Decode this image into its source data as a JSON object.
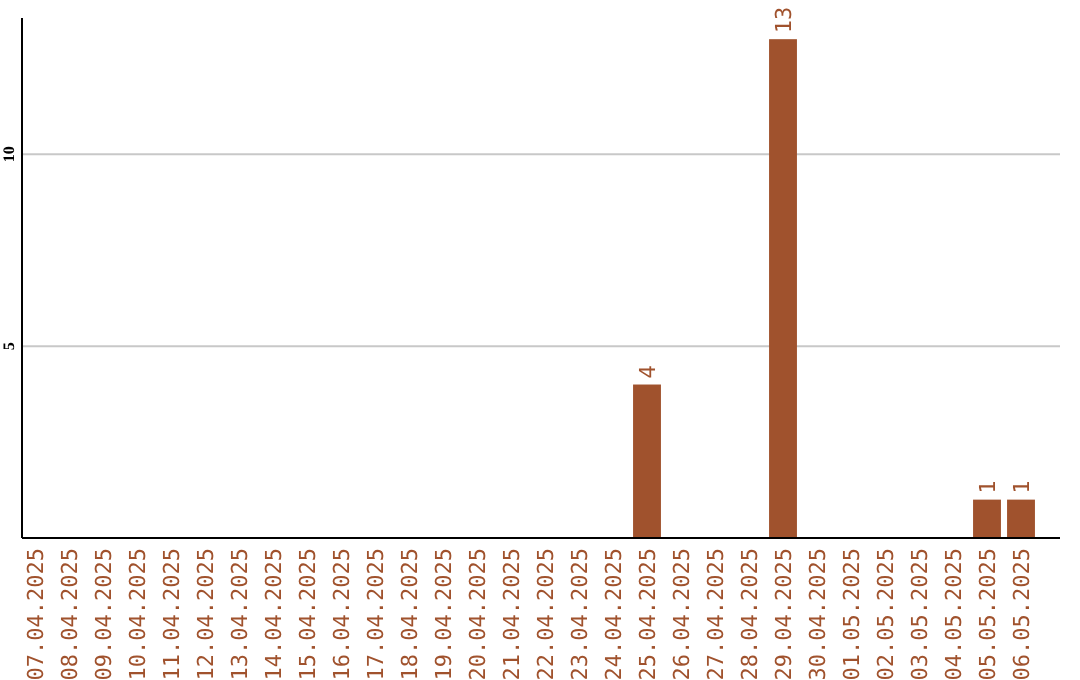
{
  "chart_data": {
    "type": "bar",
    "categories": [
      "07.04.2025",
      "08.04.2025",
      "09.04.2025",
      "10.04.2025",
      "11.04.2025",
      "12.04.2025",
      "13.04.2025",
      "14.04.2025",
      "15.04.2025",
      "16.04.2025",
      "17.04.2025",
      "18.04.2025",
      "19.04.2025",
      "20.04.2025",
      "21.04.2025",
      "22.04.2025",
      "23.04.2025",
      "24.04.2025",
      "25.04.2025",
      "26.04.2025",
      "27.04.2025",
      "28.04.2025",
      "29.04.2025",
      "30.04.2025",
      "01.05.2025",
      "02.05.2025",
      "03.05.2025",
      "04.05.2025",
      "05.05.2025",
      "06.05.2025"
    ],
    "values": [
      0,
      0,
      0,
      0,
      0,
      0,
      0,
      0,
      0,
      0,
      0,
      0,
      0,
      0,
      0,
      0,
      0,
      0,
      4,
      0,
      0,
      0,
      13,
      0,
      0,
      0,
      0,
      0,
      1,
      1
    ],
    "value_labels": [
      null,
      null,
      null,
      null,
      null,
      null,
      null,
      null,
      null,
      null,
      null,
      null,
      null,
      null,
      null,
      null,
      null,
      null,
      "4",
      null,
      null,
      null,
      "13",
      null,
      null,
      null,
      null,
      null,
      "1",
      "1"
    ],
    "color": "#a0522d",
    "ylim": [
      0,
      13.5
    ],
    "yticks": [
      5,
      10
    ],
    "grid": "y"
  }
}
